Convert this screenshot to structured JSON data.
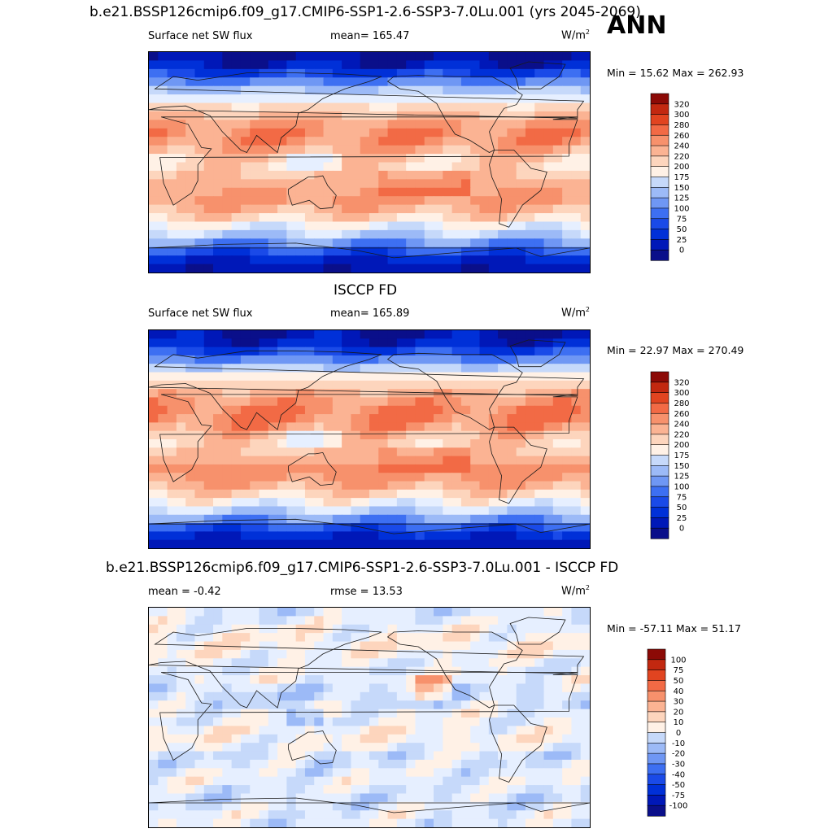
{
  "ann_label": "ANN",
  "colors": {
    "abs_scale": [
      "#0a0f8a",
      "#0018b8",
      "#0030d8",
      "#1a4ae8",
      "#3d6ff2",
      "#6f97f4",
      "#9cbaf7",
      "#c6d9fa",
      "#e6efff",
      "#fff1e6",
      "#fdd5bd",
      "#fbb393",
      "#f7916c",
      "#f26a45",
      "#e14420",
      "#c22810",
      "#8c0a06"
    ],
    "diff_scale": [
      "#0a0f8a",
      "#0018b8",
      "#0030d8",
      "#1a4ae8",
      "#3d6ff2",
      "#6f97f4",
      "#9cbaf7",
      "#c6d9fa",
      "#e6efff",
      "#fff1e6",
      "#fdd5bd",
      "#fbb393",
      "#f7916c",
      "#f26a45",
      "#e14420",
      "#c22810",
      "#8c0a06"
    ]
  },
  "chart_data": [
    {
      "type": "heatmap",
      "title": "b.e21.BSSP126cmip6.f09_g17.CMIP6-SSP1-2.6-SSP3-7.0Lu.001 (yrs 2045-2069)",
      "left_label": "Surface net SW flux",
      "center_label": "mean= 165.47",
      "units": "W/m",
      "units_sup": "2",
      "stats": "Min =  15.62 Max = 262.93",
      "colorbar_levels": [
        "320",
        "300",
        "280",
        "260",
        "240",
        "220",
        "200",
        "175",
        "150",
        "125",
        "100",
        "75",
        "50",
        "25",
        "0"
      ],
      "zonal_profile": [
        15,
        35,
        80,
        130,
        175,
        205,
        225,
        240,
        232,
        205,
        195,
        210,
        225,
        230,
        210,
        175,
        135,
        90,
        45,
        25
      ]
    },
    {
      "type": "heatmap",
      "title": "ISCCP FD",
      "left_label": "Surface net SW flux",
      "center_label": "mean= 165.89",
      "units": "W/m",
      "units_sup": "2",
      "stats": "Min =  22.97 Max = 270.49",
      "colorbar_levels": [
        "320",
        "300",
        "280",
        "260",
        "240",
        "220",
        "200",
        "175",
        "150",
        "125",
        "100",
        "75",
        "50",
        "25",
        "0"
      ],
      "zonal_profile": [
        20,
        40,
        85,
        135,
        180,
        210,
        228,
        245,
        238,
        210,
        198,
        212,
        228,
        232,
        212,
        178,
        138,
        92,
        48,
        28
      ]
    },
    {
      "type": "heatmap",
      "title": "b.e21.BSSP126cmip6.f09_g17.CMIP6-SSP1-2.6-SSP3-7.0Lu.001 - ISCCP FD",
      "left_label": "mean =  -0.42",
      "center_label": "rmse =  13.53",
      "units": "W/m",
      "units_sup": "2",
      "stats": "Min = -57.11 Max =  51.17",
      "colorbar_levels": [
        "100",
        "75",
        "50",
        "40",
        "30",
        "20",
        "10",
        "0",
        "-10",
        "-20",
        "-30",
        "-40",
        "-50",
        "-75",
        "-100"
      ],
      "zonal_profile": [
        -5,
        3,
        8,
        12,
        6,
        -2,
        5,
        -8,
        -12,
        4,
        2,
        10,
        6,
        -6,
        -4,
        3,
        -3,
        -8,
        2,
        -2
      ]
    }
  ]
}
